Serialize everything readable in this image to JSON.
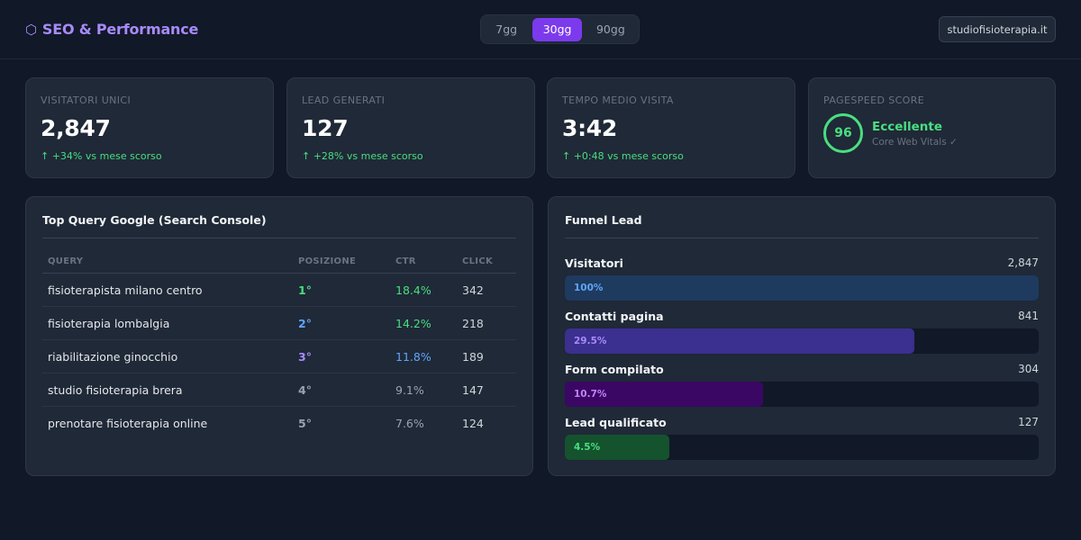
{
  "header": {
    "brand_icon": "⬡",
    "brand_title": "SEO & Performance",
    "periods": [
      "7gg",
      "30gg",
      "90gg"
    ],
    "active_period": "30gg",
    "domain": "studiofisioterapia.it"
  },
  "kpis": [
    {
      "label": "VISITATORI UNICI",
      "value": "2,847",
      "delta": "↑ +34% vs mese scorso"
    },
    {
      "label": "LEAD GENERATI",
      "value": "127",
      "delta": "↑ +28% vs mese scorso"
    },
    {
      "label": "TEMPO MEDIO VISITA",
      "value": "3:42",
      "delta": "↑ +0:48 vs mese scorso"
    }
  ],
  "pagespeed": {
    "label": "PAGESPEED SCORE",
    "score": "96",
    "rating": "Eccellente",
    "sub": "Core Web Vitals ✓"
  },
  "queries": {
    "title": "Top Query Google (Search Console)",
    "columns": [
      "QUERY",
      "POSIZIONE",
      "CTR",
      "CLICK"
    ],
    "rows": [
      {
        "query": "fisioterapista milano centro",
        "position": "1°",
        "ctr": "18.4%",
        "clicks": "342",
        "pos_color": "#4ade80",
        "ctr_color": "#4ade80"
      },
      {
        "query": "fisioterapia lombalgia",
        "position": "2°",
        "ctr": "14.2%",
        "clicks": "218",
        "pos_color": "#60a5fa",
        "ctr_color": "#4ade80"
      },
      {
        "query": "riabilitazione ginocchio",
        "position": "3°",
        "ctr": "11.8%",
        "clicks": "189",
        "pos_color": "#a78bfa",
        "ctr_color": "#60a5fa"
      },
      {
        "query": "studio fisioterapia brera",
        "position": "4°",
        "ctr": "9.1%",
        "clicks": "147",
        "pos_color": "#9ca3af",
        "ctr_color": "#9ca3af"
      },
      {
        "query": "prenotare fisioterapia online",
        "position": "5°",
        "ctr": "7.6%",
        "clicks": "124",
        "pos_color": "#9ca3af",
        "ctr_color": "#9ca3af"
      }
    ]
  },
  "funnel": {
    "title": "Funnel Lead",
    "steps": [
      {
        "label": "Visitatori",
        "count": "2,847",
        "percent_label": "100%",
        "fraction": 1.0,
        "bar_color": "#1e3a5f",
        "text_color": "#60a5fa"
      },
      {
        "label": "Contatti pagina",
        "count": "841",
        "percent_label": "29.5%",
        "fraction": 0.737,
        "bar_color": "#3b2f8f",
        "text_color": "#a78bfa"
      },
      {
        "label": "Form compilato",
        "count": "304",
        "percent_label": "10.7%",
        "fraction": 0.419,
        "bar_color": "#3b0764",
        "text_color": "#c084fc"
      },
      {
        "label": "Lead qualificato",
        "count": "127",
        "percent_label": "4.5%",
        "fraction": 0.22,
        "bar_color": "#14532d",
        "text_color": "#4ade80"
      }
    ]
  }
}
